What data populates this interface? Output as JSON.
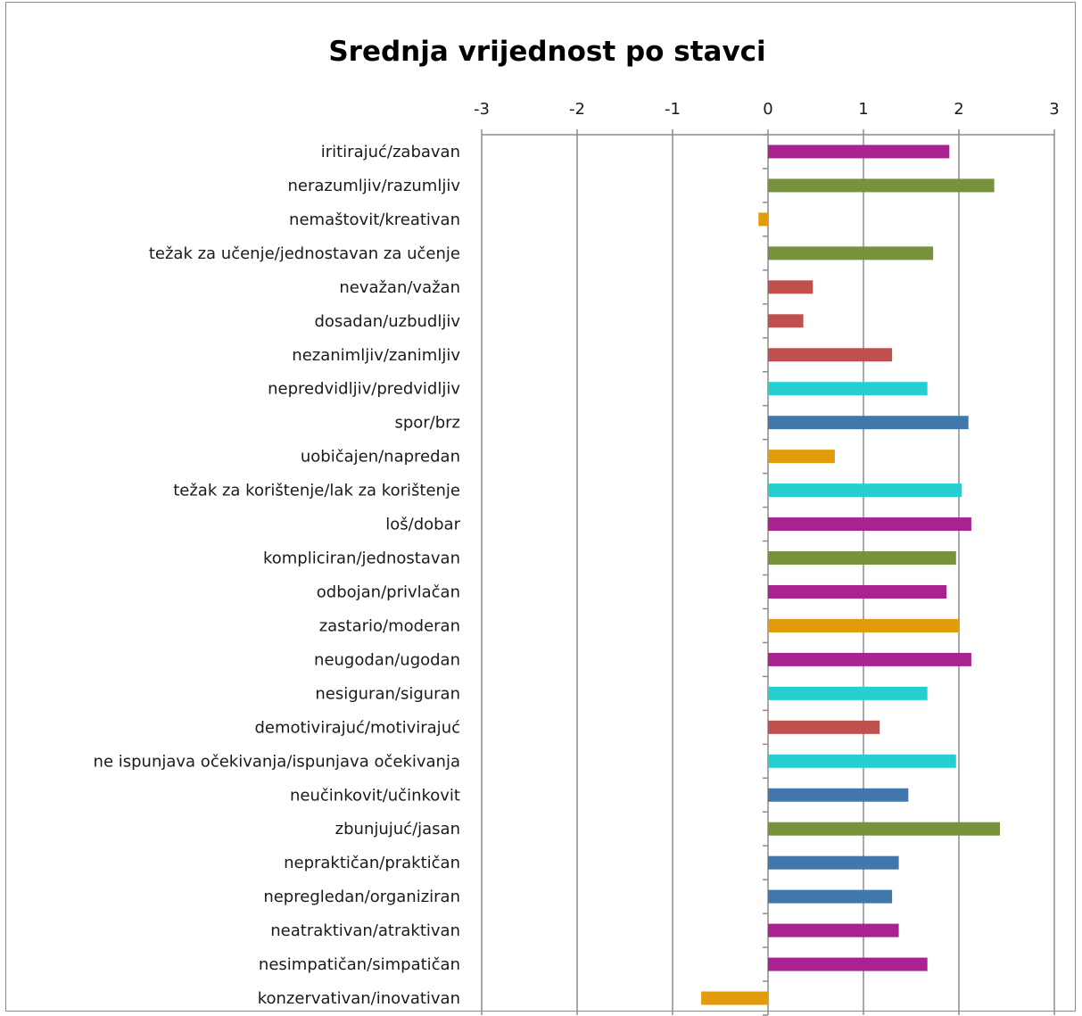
{
  "chart_data": {
    "type": "bar",
    "orientation": "horizontal",
    "title": "Srednja vrijednost po stavci",
    "xlabel": "",
    "ylabel": "",
    "xlim": [
      -3,
      3
    ],
    "x_ticks": [
      "-3",
      "-2",
      "-1",
      "0",
      "1",
      "2",
      "3"
    ],
    "x_axis_position": "top",
    "grid": "vertical",
    "legend": "none",
    "categories": [
      "iritirajuć/zabavan",
      "nerazumljiv/razumljiv",
      "nemaštovit/kreativan",
      "težak za učenje/jednostavan za učenje",
      "nevažan/važan",
      "dosadan/uzbudljiv",
      "nezanimljiv/zanimljiv",
      "nepredvidljiv/predvidljiv",
      "spor/brz",
      "uobičajen/napredan",
      "težak za korištenje/lak za korištenje",
      "loš/dobar",
      "kompliciran/jednostavan",
      "odbojan/privlačan",
      "zastario/moderan",
      "neugodan/ugodan",
      "nesiguran/siguran",
      "demotivirajuć/motivirajuć",
      "ne ispunjava očekivanja/ispunjava očekivanja",
      "neučinkovit/učinkovit",
      "zbunjujuć/jasan",
      "nepraktičan/praktičan",
      "nepregledan/organiziran",
      "neatraktivan/atraktivan",
      "nesimpatičan/simpatičan",
      "konzervativan/inovativan"
    ],
    "values": [
      1.9,
      2.37,
      -0.1,
      1.73,
      0.47,
      0.37,
      1.3,
      1.67,
      2.1,
      0.7,
      2.03,
      2.13,
      1.97,
      1.87,
      2.0,
      2.13,
      1.67,
      1.17,
      1.97,
      1.47,
      2.43,
      1.37,
      1.3,
      1.37,
      1.67,
      -0.7
    ],
    "bar_colors": [
      "#a8238f",
      "#76923c",
      "#e29c0b",
      "#76923c",
      "#c0504d",
      "#c0504d",
      "#c0504d",
      "#25cfcf",
      "#4177ab",
      "#e29c0b",
      "#25cfcf",
      "#a8238f",
      "#76923c",
      "#a8238f",
      "#e29c0b",
      "#a8238f",
      "#25cfcf",
      "#c0504d",
      "#25cfcf",
      "#4177ab",
      "#76923c",
      "#4177ab",
      "#4177ab",
      "#a8238f",
      "#a8238f",
      "#e29c0b"
    ],
    "gridline_color": "#8c8c8c"
  }
}
